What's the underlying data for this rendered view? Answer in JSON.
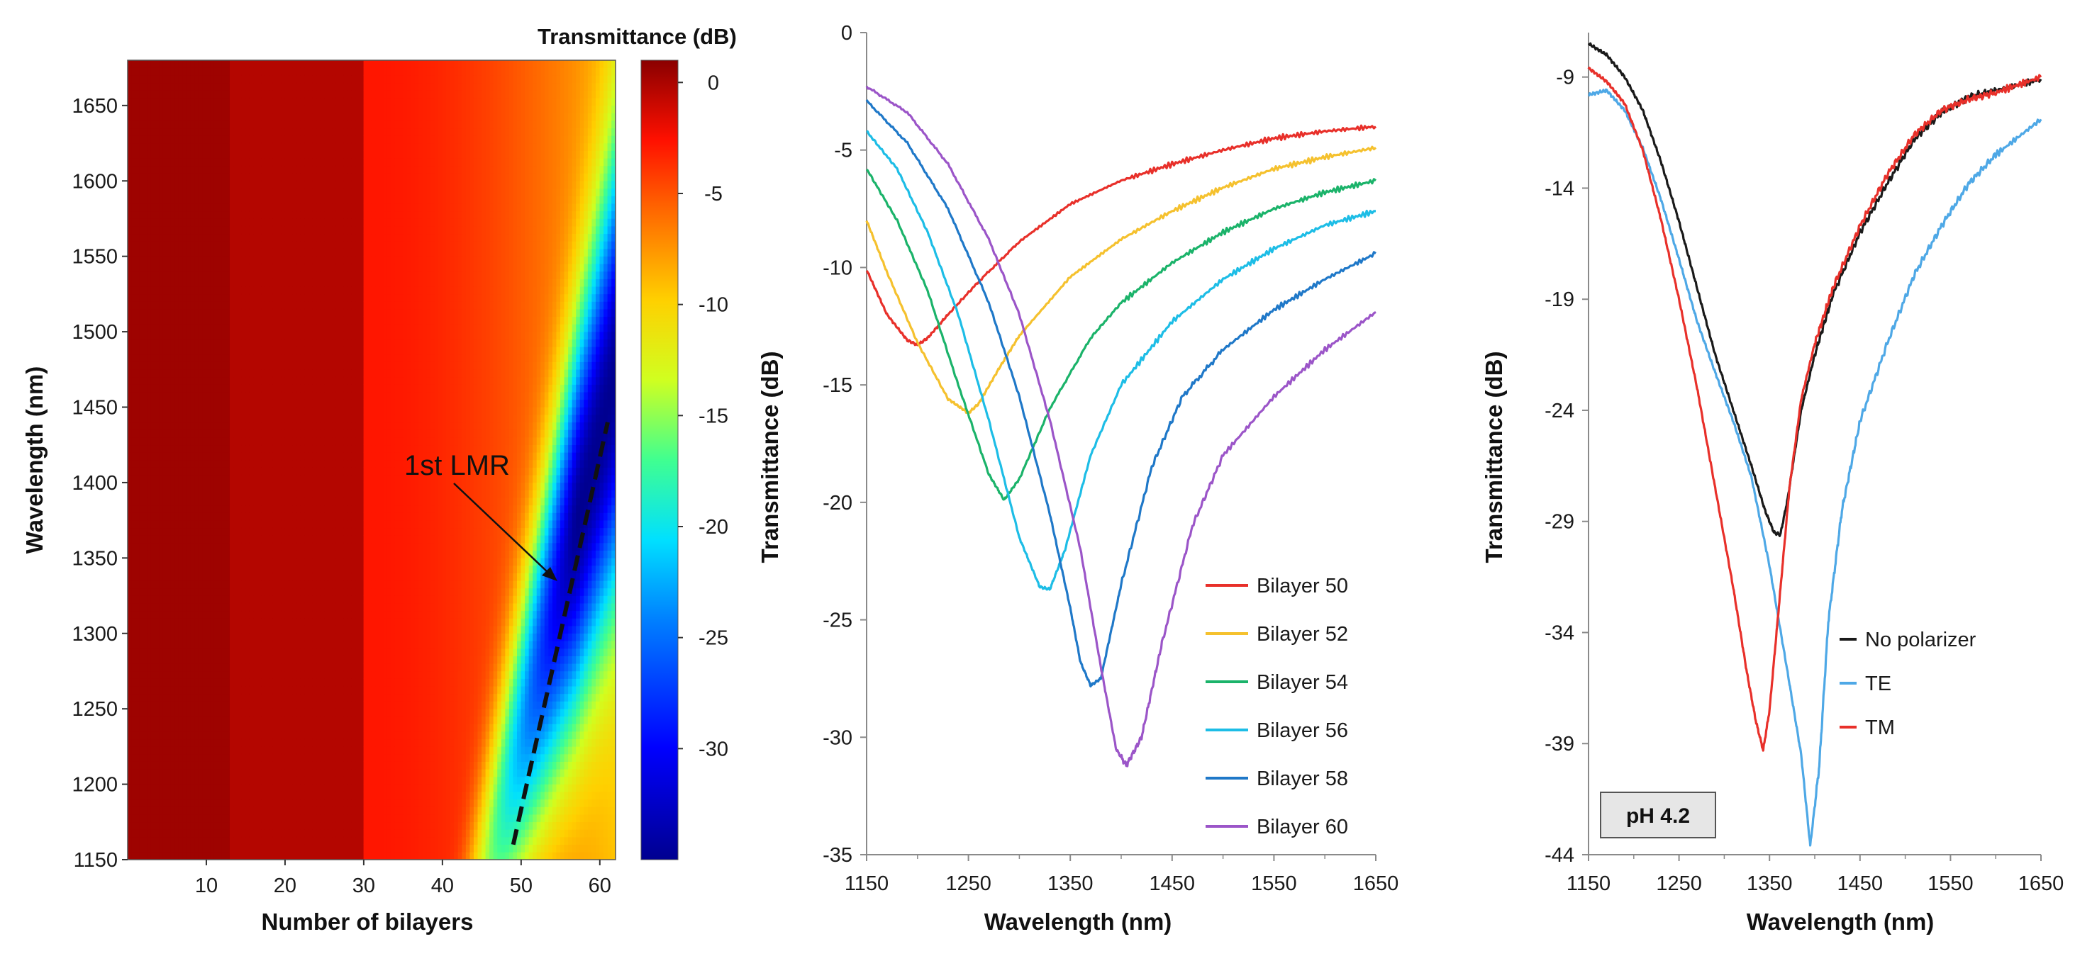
{
  "chart_data": [
    {
      "type": "heatmap",
      "title": "",
      "xlabel": "Number of bilayers",
      "ylabel": "Wavelength (nm)",
      "xlim": [
        0,
        62
      ],
      "ylim": [
        1150,
        1680
      ],
      "xticks": [
        "10",
        "20",
        "30",
        "40",
        "50",
        "60"
      ],
      "yticks": [
        "1150",
        "1200",
        "1250",
        "1300",
        "1350",
        "1400",
        "1450",
        "1500",
        "1550",
        "1600",
        "1650"
      ],
      "colorbar": {
        "title": "Transmittance (dB)",
        "range": [
          -35,
          1
        ],
        "ticks": [
          "0",
          "-5",
          "-10",
          "-15",
          "-20",
          "-25",
          "-30"
        ],
        "colormap": "jet"
      },
      "annotation": {
        "text": "1st LMR",
        "line": {
          "from": [
            49,
            1160
          ],
          "to": [
            61,
            1440
          ],
          "style": "dashed"
        }
      },
      "resonance_model": {
        "onset_bilayers": 45,
        "center_wavelength_start": 1130,
        "center_wavelength_slope_per_bilayer": 20,
        "min_transmittance_db": -35
      }
    },
    {
      "type": "line",
      "title": "",
      "xlabel": "Wavelength (nm)",
      "ylabel": "Transmittance (dB)",
      "xlim": [
        1150,
        1650
      ],
      "ylim": [
        -35,
        0
      ],
      "xticks": [
        "1150",
        "1250",
        "1350",
        "1450",
        "1550",
        "1650"
      ],
      "yticks": [
        "0",
        "-5",
        "-10",
        "-15",
        "-20",
        "-25",
        "-30",
        "-35"
      ],
      "legend_position": "bottom-right",
      "series": [
        {
          "name": "Bilayer 50",
          "color": "#e8302a",
          "x": [
            1150,
            1170,
            1190,
            1200,
            1210,
            1230,
            1260,
            1300,
            1350,
            1400,
            1450,
            1500,
            1550,
            1600,
            1650
          ],
          "y": [
            -10.1,
            -12.0,
            -13.1,
            -13.3,
            -13.0,
            -12.0,
            -10.6,
            -8.9,
            -7.3,
            -6.3,
            -5.6,
            -5.0,
            -4.5,
            -4.2,
            -4.0
          ]
        },
        {
          "name": "Bilayer 52",
          "color": "#f5c12e",
          "x": [
            1150,
            1170,
            1200,
            1230,
            1250,
            1260,
            1280,
            1300,
            1350,
            1400,
            1450,
            1500,
            1550,
            1600,
            1650
          ],
          "y": [
            -8.0,
            -10.2,
            -13.2,
            -15.6,
            -16.2,
            -15.8,
            -14.3,
            -12.9,
            -10.4,
            -8.8,
            -7.6,
            -6.6,
            -5.8,
            -5.3,
            -4.9
          ]
        },
        {
          "name": "Bilayer 54",
          "color": "#1bb36a",
          "x": [
            1150,
            1180,
            1210,
            1240,
            1270,
            1285,
            1300,
            1330,
            1370,
            1400,
            1450,
            1500,
            1550,
            1600,
            1650
          ],
          "y": [
            -5.8,
            -8.0,
            -11.0,
            -15.0,
            -18.8,
            -19.9,
            -19.0,
            -16.0,
            -13.0,
            -11.5,
            -9.8,
            -8.5,
            -7.5,
            -6.8,
            -6.3
          ]
        },
        {
          "name": "Bilayer 56",
          "color": "#1dbde6",
          "x": [
            1150,
            1180,
            1210,
            1240,
            1270,
            1300,
            1320,
            1330,
            1345,
            1370,
            1400,
            1450,
            1500,
            1550,
            1600,
            1650
          ],
          "y": [
            -4.2,
            -5.8,
            -8.5,
            -12.0,
            -16.5,
            -21.5,
            -23.6,
            -23.7,
            -22.0,
            -18.0,
            -15.0,
            -12.3,
            -10.5,
            -9.2,
            -8.2,
            -7.6
          ]
        },
        {
          "name": "Bilayer 58",
          "color": "#1f78c8",
          "x": [
            1150,
            1190,
            1230,
            1270,
            1300,
            1330,
            1350,
            1360,
            1370,
            1380,
            1400,
            1430,
            1460,
            1500,
            1550,
            1600,
            1650
          ],
          "y": [
            -2.9,
            -4.7,
            -7.5,
            -11.5,
            -15.5,
            -20.5,
            -24.5,
            -26.8,
            -27.8,
            -27.5,
            -23.5,
            -18.5,
            -15.5,
            -13.5,
            -11.8,
            -10.5,
            -9.4
          ]
        },
        {
          "name": "Bilayer 60",
          "color": "#9b55c8",
          "x": [
            1150,
            1190,
            1230,
            1270,
            1300,
            1330,
            1360,
            1380,
            1395,
            1405,
            1420,
            1440,
            1470,
            1500,
            1550,
            1600,
            1650
          ],
          "y": [
            -2.3,
            -3.4,
            -5.6,
            -8.8,
            -12.0,
            -16.5,
            -22.0,
            -27.0,
            -30.5,
            -31.2,
            -30.0,
            -26.0,
            -21.0,
            -18.0,
            -15.5,
            -13.5,
            -11.9
          ]
        }
      ]
    },
    {
      "type": "line",
      "title": "",
      "xlabel": "Wavelength (nm)",
      "ylabel": "Transmittance (dB)",
      "xlim": [
        1150,
        1650
      ],
      "ylim": [
        -44,
        -7
      ],
      "xticks": [
        "1150",
        "1250",
        "1350",
        "1450",
        "1550",
        "1650"
      ],
      "yticks": [
        "-9",
        "-14",
        "-19",
        "-24",
        "-29",
        "-34",
        "-39",
        "-44"
      ],
      "legend_position": "bottom-right",
      "label_box": "pH 4.2",
      "series": [
        {
          "name": "No polarizer",
          "color": "#1a1a1a",
          "x": [
            1150,
            1170,
            1190,
            1210,
            1230,
            1250,
            1270,
            1290,
            1310,
            1330,
            1345,
            1355,
            1362,
            1370,
            1385,
            1400,
            1420,
            1450,
            1480,
            1510,
            1540,
            1570,
            1600,
            1650
          ],
          "y": [
            -7.5,
            -8.0,
            -9.0,
            -10.5,
            -12.8,
            -15.5,
            -18.5,
            -21.5,
            -24.0,
            -26.5,
            -28.5,
            -29.5,
            -29.6,
            -28.0,
            -24.0,
            -21.5,
            -18.8,
            -16.0,
            -13.8,
            -11.8,
            -10.6,
            -9.9,
            -9.6,
            -9.1
          ]
        },
        {
          "name": "TE",
          "color": "#4ea8e6",
          "x": [
            1150,
            1170,
            1190,
            1210,
            1230,
            1250,
            1270,
            1290,
            1310,
            1330,
            1350,
            1370,
            1385,
            1395,
            1405,
            1415,
            1430,
            1450,
            1480,
            1510,
            1540,
            1570,
            1600,
            1650
          ],
          "y": [
            -9.8,
            -9.6,
            -10.5,
            -12.2,
            -14.5,
            -17.2,
            -20.0,
            -22.3,
            -24.5,
            -27.0,
            -31.0,
            -35.8,
            -39.5,
            -43.6,
            -40.0,
            -33.5,
            -28.5,
            -24.5,
            -21.0,
            -17.9,
            -15.7,
            -13.8,
            -12.5,
            -10.9
          ]
        },
        {
          "name": "TM",
          "color": "#e8302a",
          "x": [
            1150,
            1170,
            1190,
            1210,
            1230,
            1250,
            1270,
            1290,
            1310,
            1325,
            1335,
            1343,
            1350,
            1360,
            1372,
            1385,
            1400,
            1420,
            1450,
            1480,
            1510,
            1540,
            1570,
            1600,
            1650
          ],
          "y": [
            -8.6,
            -9.2,
            -10.2,
            -12.3,
            -15.4,
            -19.0,
            -23.0,
            -27.5,
            -32.0,
            -35.8,
            -38.0,
            -39.3,
            -37.5,
            -33.0,
            -27.5,
            -23.5,
            -21.0,
            -18.5,
            -15.7,
            -13.4,
            -11.6,
            -10.5,
            -10.0,
            -9.7,
            -9.0
          ]
        }
      ]
    }
  ]
}
